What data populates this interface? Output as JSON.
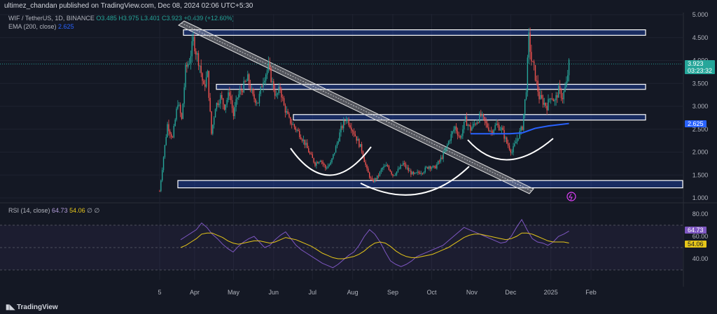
{
  "header": {
    "published": "ultimez_chandan published on TradingView.com, Dec 08, 2024 02:06 UTC+5:30"
  },
  "legend": {
    "symbol": "WIF / TetherUS, 1D, BINANCE",
    "ohlc": "O3.485 H3.975 L3.401 C3.923 +0.439 (+12.60%)",
    "ema_label": "EMA (200, close)",
    "ema_value": "2.625",
    "rsi_label": "RSI (14, close)",
    "rsi_value": "64.73",
    "rsi_ma_value": "54.06",
    "rsi_extra": "∅ ∅"
  },
  "price_tags": {
    "last": "3.923",
    "countdown": "03:23:32",
    "ema": "2.625"
  },
  "rsi_tags": {
    "rsi": "64.73",
    "ma": "54.06"
  },
  "footer": {
    "brand": "TradingView"
  },
  "colors": {
    "up": "#26a69a",
    "down": "#ef5350",
    "ema": "#2962ff",
    "rsi": "#7e57c2",
    "rsi_ma": "#e6c619",
    "zone": "#ffffff"
  },
  "chart_data": [
    {
      "type": "candlestick",
      "symbol": "WIF / TetherUS",
      "timeframe": "1D",
      "y_ticks": [
        "1.000",
        "1.500",
        "2.000",
        "2.500",
        "3.000",
        "3.500",
        "4.000",
        "4.500",
        "5.000"
      ],
      "ylim": [
        1.0,
        5.0
      ],
      "x_ticks": [
        "5",
        "Apr",
        "May",
        "Jun",
        "Jul",
        "Aug",
        "Sep",
        "Oct",
        "Nov",
        "Dec",
        "2025",
        "Feb"
      ],
      "close_path": [
        [
          0,
          1.15
        ],
        [
          3,
          1.9
        ],
        [
          6,
          2.6
        ],
        [
          10,
          2.3
        ],
        [
          14,
          3.1
        ],
        [
          17,
          2.7
        ],
        [
          20,
          3.8
        ],
        [
          23,
          4.0
        ],
        [
          26,
          4.45
        ],
        [
          28,
          4.2
        ],
        [
          31,
          3.9
        ],
        [
          34,
          3.4
        ],
        [
          37,
          3.7
        ],
        [
          40,
          2.4
        ],
        [
          43,
          3.0
        ],
        [
          47,
          3.2
        ],
        [
          50,
          3.0
        ],
        [
          54,
          3.3
        ],
        [
          57,
          2.8
        ],
        [
          60,
          3.2
        ],
        [
          64,
          3.4
        ],
        [
          68,
          3.6
        ],
        [
          72,
          3.2
        ],
        [
          76,
          3.1
        ],
        [
          80,
          3.6
        ],
        [
          84,
          3.85
        ],
        [
          87,
          3.5
        ],
        [
          90,
          3.2
        ],
        [
          93,
          3.4
        ],
        [
          96,
          3.0
        ],
        [
          100,
          2.7
        ],
        [
          104,
          2.55
        ],
        [
          108,
          2.4
        ],
        [
          112,
          2.2
        ],
        [
          116,
          1.95
        ],
        [
          120,
          1.75
        ],
        [
          124,
          1.85
        ],
        [
          128,
          1.65
        ],
        [
          132,
          1.75
        ],
        [
          136,
          2.1
        ],
        [
          140,
          2.5
        ],
        [
          144,
          2.75
        ],
        [
          148,
          2.55
        ],
        [
          152,
          2.3
        ],
        [
          156,
          2.05
        ],
        [
          160,
          1.6
        ],
        [
          164,
          1.35
        ],
        [
          168,
          1.45
        ],
        [
          172,
          1.65
        ],
        [
          176,
          1.7
        ],
        [
          180,
          1.5
        ],
        [
          184,
          1.6
        ],
        [
          188,
          1.75
        ],
        [
          192,
          1.6
        ],
        [
          196,
          1.5
        ],
        [
          200,
          1.55
        ],
        [
          204,
          1.6
        ],
        [
          208,
          1.7
        ],
        [
          212,
          1.65
        ],
        [
          216,
          1.8
        ],
        [
          220,
          2.0
        ],
        [
          224,
          2.3
        ],
        [
          228,
          2.55
        ],
        [
          232,
          2.3
        ],
        [
          236,
          2.7
        ],
        [
          240,
          2.5
        ],
        [
          244,
          2.65
        ],
        [
          248,
          2.8
        ],
        [
          252,
          2.6
        ],
        [
          256,
          2.45
        ],
        [
          260,
          2.6
        ],
        [
          264,
          2.5
        ],
        [
          268,
          2.2
        ],
        [
          272,
          2.0
        ],
        [
          276,
          2.3
        ],
        [
          280,
          2.55
        ],
        [
          283,
          3.4
        ],
        [
          285,
          4.5
        ],
        [
          287,
          4.0
        ],
        [
          289,
          3.8
        ],
        [
          291,
          3.5
        ],
        [
          293,
          3.2
        ],
        [
          296,
          3.1
        ],
        [
          299,
          3.0
        ],
        [
          302,
          3.25
        ],
        [
          305,
          3.1
        ],
        [
          308,
          3.35
        ],
        [
          311,
          3.2
        ],
        [
          314,
          3.485
        ],
        [
          316,
          3.923
        ]
      ],
      "ema_200": [
        [
          240,
          2.4
        ],
        [
          250,
          2.4
        ],
        [
          260,
          2.4
        ],
        [
          270,
          2.4
        ],
        [
          280,
          2.42
        ],
        [
          290,
          2.52
        ],
        [
          300,
          2.57
        ],
        [
          316,
          2.625
        ]
      ],
      "zones": [
        {
          "from": 1.22,
          "to": 1.38
        },
        {
          "from": 2.7,
          "to": 2.82
        },
        {
          "from": 3.37,
          "to": 3.48
        },
        {
          "from": 4.55,
          "to": 4.67
        }
      ]
    },
    {
      "type": "line",
      "indicator": "RSI",
      "y_ticks": [
        "40.00",
        "60.00",
        "80.00"
      ],
      "ylim": [
        25,
        85
      ],
      "bands": [
        30,
        70
      ],
      "series": [
        {
          "values": [
            57,
            60,
            63,
            66,
            72,
            68,
            62,
            58,
            53,
            49,
            46,
            51,
            55,
            58,
            60,
            55,
            50,
            52,
            57,
            61,
            64,
            58,
            52,
            48,
            45,
            42,
            39,
            36,
            34,
            32,
            35,
            39,
            43,
            46,
            52,
            60,
            66,
            62,
            55,
            46,
            38,
            35,
            33,
            35,
            38,
            42,
            44,
            46,
            48,
            50,
            52,
            56,
            60,
            64,
            68,
            66,
            64,
            62,
            60,
            58,
            56,
            54,
            55,
            60,
            68,
            75,
            66,
            58,
            55,
            54,
            52,
            55,
            60,
            62,
            64.73
          ]
        },
        {
          "values": [
            50,
            52,
            55,
            58,
            62,
            63,
            63,
            61,
            59,
            56,
            54,
            53,
            54,
            55,
            56,
            56,
            55,
            54,
            55,
            57,
            59,
            58,
            57,
            55,
            53,
            51,
            48,
            45,
            43,
            41,
            40,
            40,
            41,
            42,
            44,
            47,
            51,
            54,
            55,
            54,
            51,
            47,
            44,
            42,
            41,
            41,
            42,
            43,
            44,
            46,
            48,
            50,
            53,
            56,
            59,
            61,
            62,
            62,
            61,
            60,
            59,
            58,
            57,
            58,
            60,
            63,
            63,
            62,
            60,
            58,
            56,
            55,
            55,
            55,
            54.06
          ]
        }
      ]
    }
  ]
}
